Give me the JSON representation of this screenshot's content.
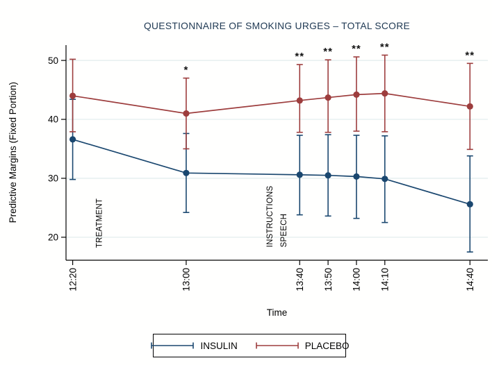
{
  "window": {
    "title": "QUESTIONNAIRE OF SMOKING URGES – TOTAL SCORE"
  },
  "chart_data": {
    "type": "line",
    "title": "QUESTIONNAIRE OF SMOKING URGES – TOTAL SCORE",
    "xlabel": "Time",
    "ylabel": "Predictive Margins (Fixed Portion)",
    "x_tick_labels": [
      "12:20",
      "13:00",
      "13:40",
      "13:50",
      "14:00",
      "14:10",
      "14:40"
    ],
    "x_minutes": [
      0,
      40,
      80,
      90,
      100,
      110,
      140
    ],
    "xlim_minutes": [
      -2.35,
      146.3
    ],
    "ylim": [
      16.1,
      52.6
    ],
    "yticks": [
      20,
      30,
      40,
      50
    ],
    "grid": true,
    "legend_position": "bottom",
    "error_bars": true,
    "series": [
      {
        "name": "INSULIN",
        "color": "#1a476f",
        "means": [
          36.6,
          30.9,
          30.6,
          30.5,
          30.3,
          29.9,
          25.6
        ],
        "ci_low": [
          29.8,
          24.2,
          23.8,
          23.6,
          23.2,
          22.5,
          17.5
        ],
        "ci_high": [
          43.4,
          37.6,
          37.3,
          37.4,
          37.3,
          37.2,
          33.8
        ]
      },
      {
        "name": "PLACEBO",
        "color": "#9d3d3d",
        "means": [
          44.0,
          41.0,
          43.2,
          43.7,
          44.2,
          44.4,
          42.2
        ],
        "ci_low": [
          37.9,
          35.0,
          37.8,
          37.8,
          38.0,
          37.9,
          34.9
        ],
        "ci_high": [
          50.2,
          47.0,
          49.3,
          50.1,
          50.6,
          50.9,
          49.5
        ]
      }
    ],
    "significance": [
      "",
      "*",
      "**",
      "**",
      "**",
      "**",
      "**"
    ],
    "annotations": [
      {
        "text": "TREATMENT",
        "minute": 9.2,
        "bottom_value": 18.2
      },
      {
        "text": "INSTRUCTIONS",
        "minute": 69.3,
        "bottom_value": 18.3
      },
      {
        "text": "SPEECH",
        "minute": 74.2,
        "bottom_value": 18.3
      }
    ],
    "colors": {
      "grid": "#e3eeee",
      "axis": "#000000",
      "title": "#203a54",
      "significance": "#111111"
    }
  },
  "legend": {
    "items": [
      {
        "label": "INSULIN"
      },
      {
        "label": "PLACEBO"
      }
    ]
  }
}
